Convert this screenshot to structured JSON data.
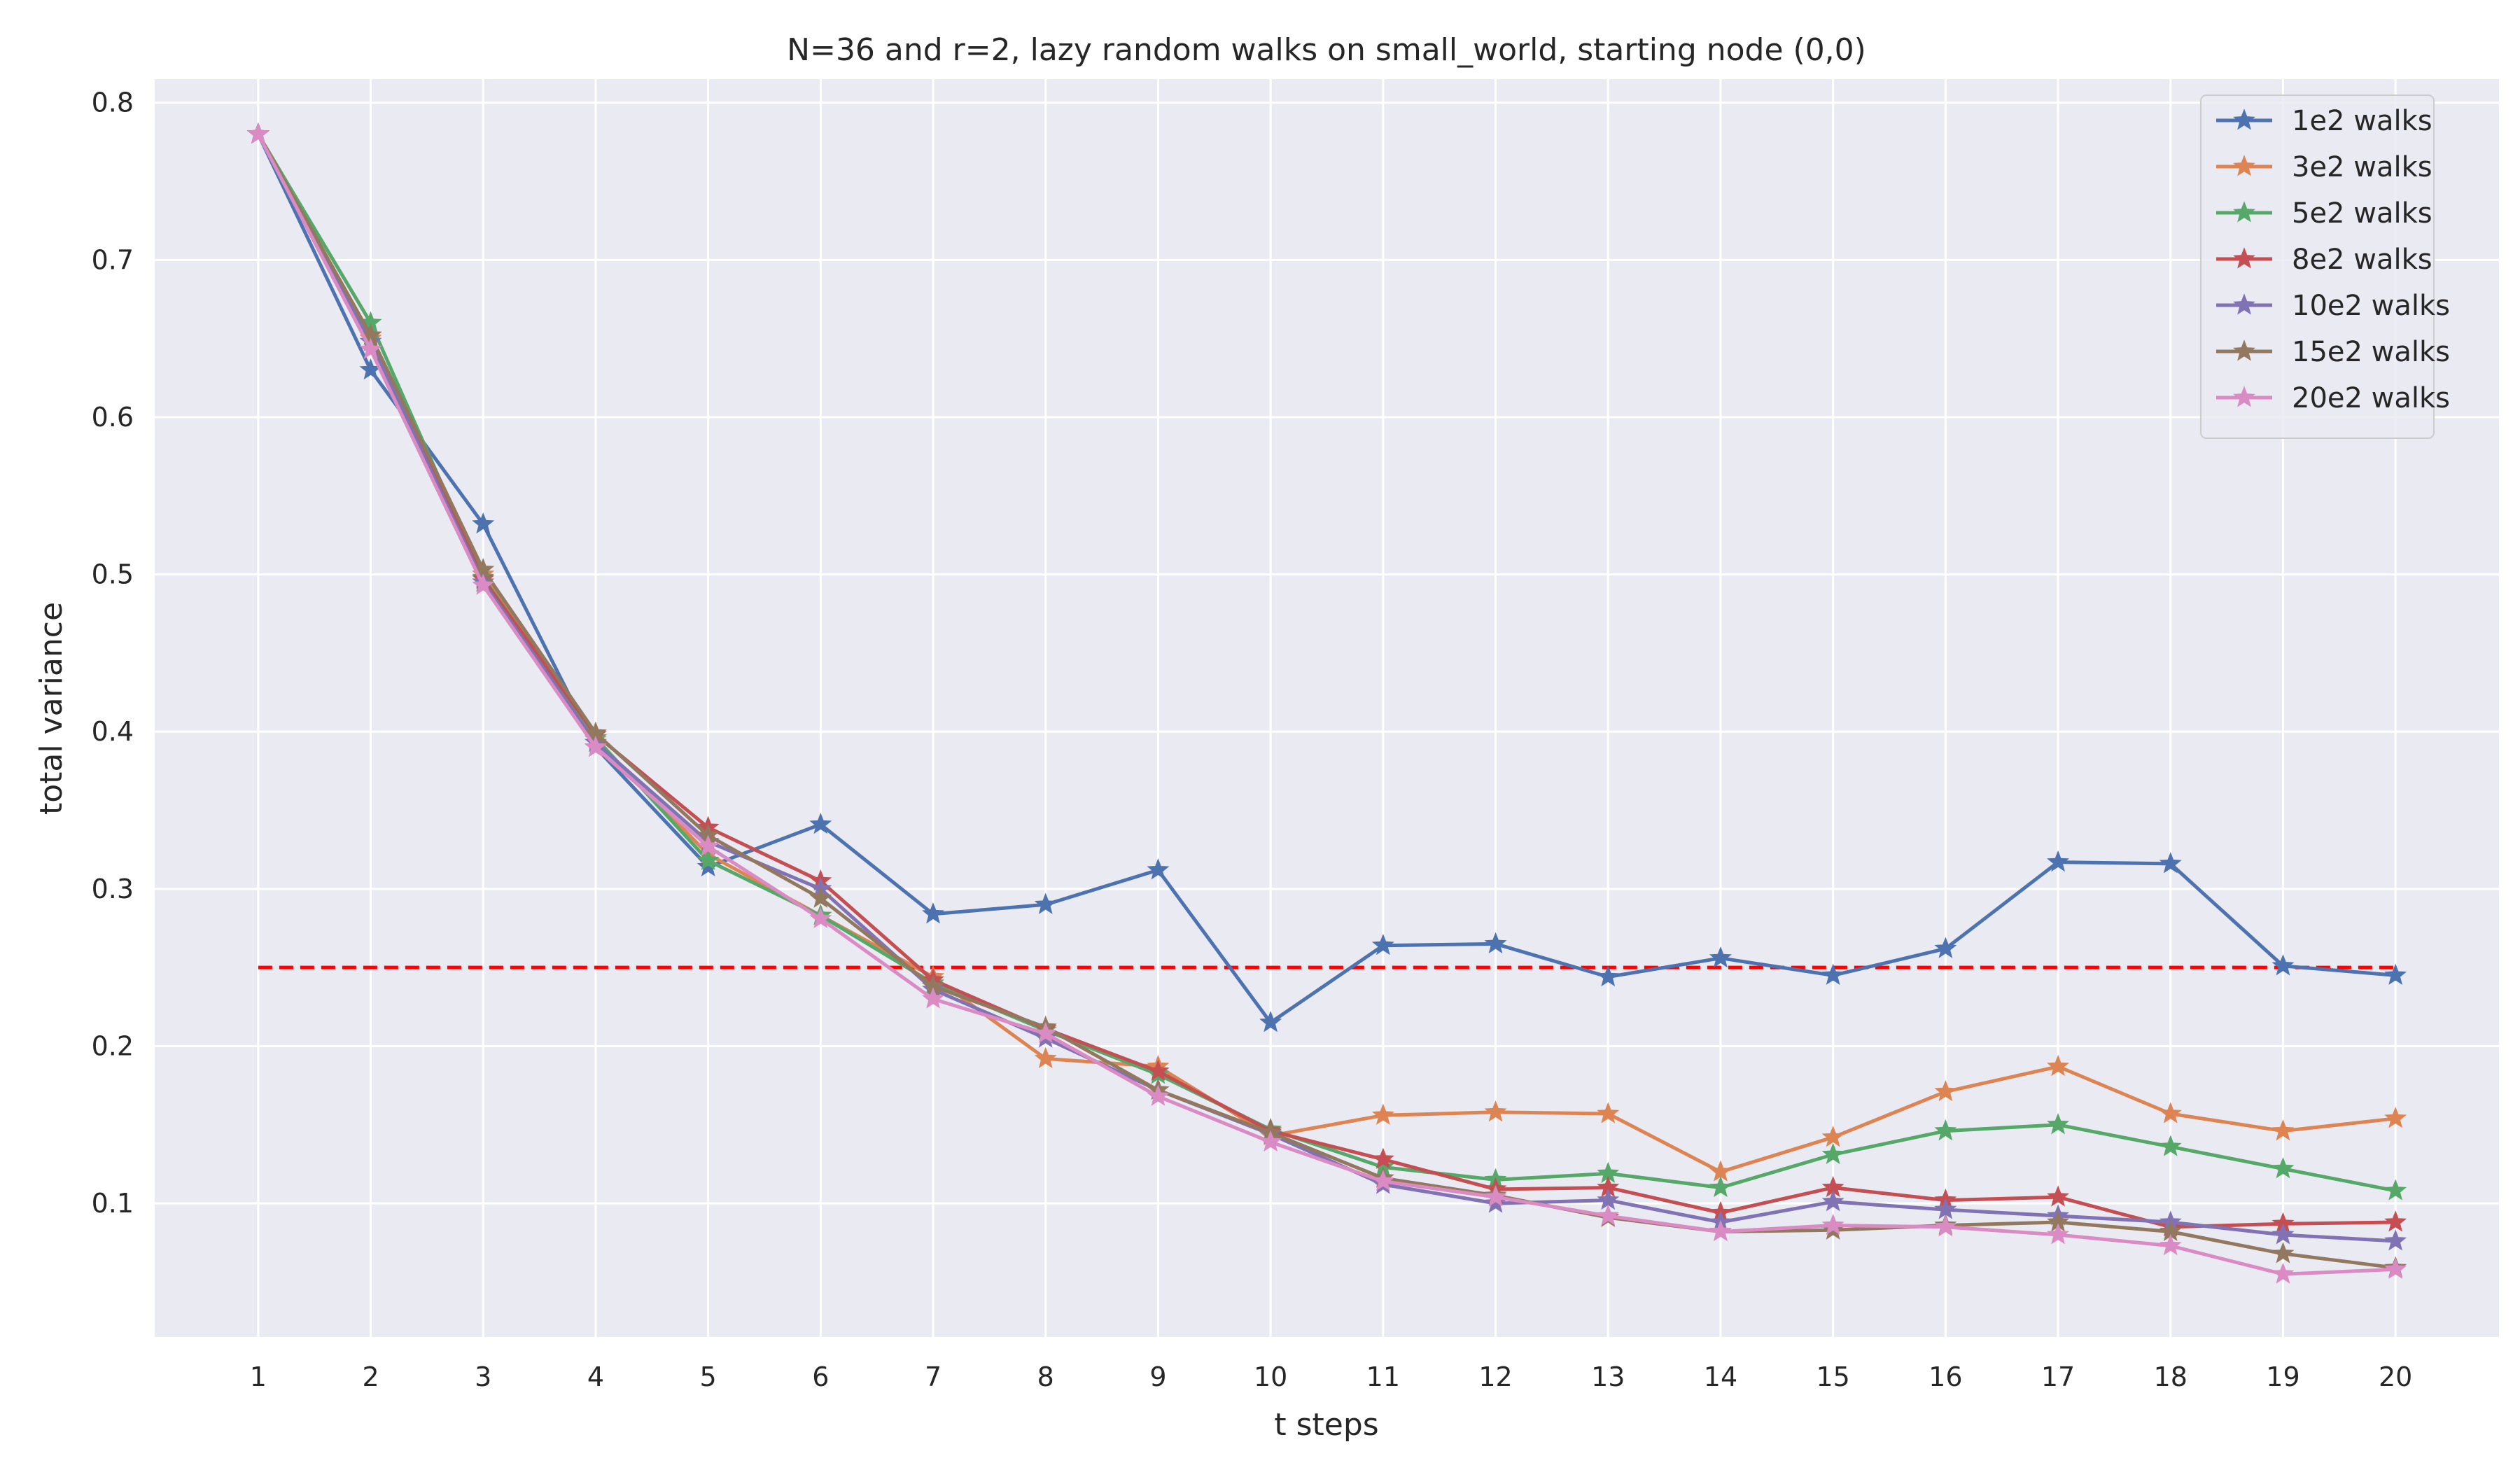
{
  "chart_data": {
    "type": "line",
    "title": "N=36 and r=2, lazy random walks on small_world, starting node (0,0)",
    "xlabel": "t steps",
    "ylabel": "total variance",
    "x": [
      1,
      2,
      3,
      4,
      5,
      6,
      7,
      8,
      9,
      10,
      11,
      12,
      13,
      14,
      15,
      16,
      17,
      18,
      19,
      20
    ],
    "xlim": [
      0.08,
      20.92
    ],
    "ylim": [
      0.015,
      0.815
    ],
    "yticks": [
      0.1,
      0.2,
      0.3,
      0.4,
      0.5,
      0.6,
      0.7,
      0.8
    ],
    "ytick_labels": [
      "0.1",
      "0.2",
      "0.3",
      "0.4",
      "0.5",
      "0.6",
      "0.7",
      "0.8"
    ],
    "grid": true,
    "legend_position": "top-right",
    "marker": "star",
    "series": [
      {
        "name": "1e2 walks",
        "color": "#4c72b0",
        "values": [
          0.78,
          0.63,
          0.532,
          0.39,
          0.314,
          0.341,
          0.284,
          0.29,
          0.312,
          0.215,
          0.264,
          0.265,
          0.244,
          0.256,
          0.245,
          0.262,
          0.317,
          0.316,
          0.251,
          0.245
        ]
      },
      {
        "name": "3e2 walks",
        "color": "#dd8452",
        "values": [
          0.78,
          0.65,
          0.5,
          0.395,
          0.322,
          0.283,
          0.244,
          0.192,
          0.187,
          0.143,
          0.156,
          0.158,
          0.157,
          0.12,
          0.142,
          0.171,
          0.187,
          0.157,
          0.146,
          0.154
        ]
      },
      {
        "name": "5e2 walks",
        "color": "#55a868",
        "values": [
          0.78,
          0.66,
          0.498,
          0.396,
          0.318,
          0.283,
          0.24,
          0.21,
          0.182,
          0.147,
          0.123,
          0.115,
          0.119,
          0.11,
          0.131,
          0.146,
          0.15,
          0.136,
          0.122,
          0.108
        ]
      },
      {
        "name": "8e2 walks",
        "color": "#c44e52",
        "values": [
          0.78,
          0.652,
          0.497,
          0.398,
          0.339,
          0.305,
          0.242,
          0.211,
          0.184,
          0.146,
          0.128,
          0.109,
          0.11,
          0.094,
          0.11,
          0.102,
          0.104,
          0.085,
          0.087,
          0.088
        ]
      },
      {
        "name": "10e2 walks",
        "color": "#8172b3",
        "values": [
          0.78,
          0.648,
          0.495,
          0.393,
          0.33,
          0.3,
          0.236,
          0.205,
          0.172,
          0.144,
          0.112,
          0.1,
          0.102,
          0.088,
          0.101,
          0.096,
          0.092,
          0.088,
          0.08,
          0.076
        ]
      },
      {
        "name": "15e2 walks",
        "color": "#937860",
        "values": [
          0.78,
          0.652,
          0.503,
          0.399,
          0.334,
          0.294,
          0.238,
          0.212,
          0.172,
          0.145,
          0.116,
          0.105,
          0.091,
          0.082,
          0.083,
          0.086,
          0.088,
          0.082,
          0.068,
          0.059
        ]
      },
      {
        "name": "20e2 walks",
        "color": "#da8bc3",
        "values": [
          0.78,
          0.643,
          0.493,
          0.39,
          0.327,
          0.281,
          0.23,
          0.208,
          0.168,
          0.139,
          0.114,
          0.104,
          0.092,
          0.082,
          0.086,
          0.085,
          0.08,
          0.073,
          0.055,
          0.058
        ]
      }
    ],
    "reference_line": {
      "y": 0.25,
      "x_range": [
        1,
        20
      ],
      "color": "#ff0000",
      "style": "dashed"
    }
  }
}
